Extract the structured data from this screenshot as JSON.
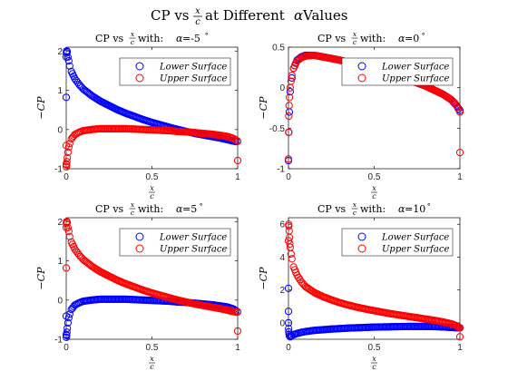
{
  "suptitle": {
    "pre": "CP vs ",
    "frac_num": "x",
    "frac_den": "c",
    "post": " at Different ",
    "alpha": "α",
    "tail": " Values"
  },
  "chart_data": [
    {
      "type": "scatter",
      "title": {
        "pre": "CP vs ",
        "frac_num": "x",
        "frac_den": "c",
        "mid": " with: ",
        "alpha": "α",
        "eq": " =-5",
        "deg": "°"
      },
      "xlabel": {
        "num": "x",
        "den": "c"
      },
      "ylabel": "−CP",
      "xlim": [
        0,
        1
      ],
      "ylim": [
        -1,
        2.1
      ],
      "xticks": [
        0,
        0.5,
        1
      ],
      "xtick_labels": [
        "0",
        "0.5",
        "1"
      ],
      "yticks": [
        -1,
        0,
        1,
        2
      ],
      "ytick_labels": [
        "-1",
        "0",
        "1",
        "2"
      ],
      "legend": [
        "Lower Surface",
        "Upper Surface"
      ],
      "legend_position": "top-right",
      "series": [
        {
          "name": "Lower Surface",
          "color": "#0000ff",
          "x": [
            0,
            0,
            0.001,
            0.002,
            0.004,
            0.006,
            0.01,
            0.015,
            0.02,
            0.03,
            0.05,
            0.075,
            0.1,
            0.15,
            0.2,
            0.25,
            0.3,
            0.35,
            0.4,
            0.45,
            0.5,
            0.55,
            0.6,
            0.65,
            0.7,
            0.75,
            0.8,
            0.85,
            0.9,
            0.93,
            0.95,
            0.97,
            0.98,
            0.99,
            1.0
          ],
          "y": [
            0.82,
            1.85,
            1.95,
            2.0,
            2.0,
            1.98,
            1.85,
            1.75,
            1.62,
            1.48,
            1.3,
            1.15,
            1.03,
            0.86,
            0.72,
            0.61,
            0.5,
            0.41,
            0.33,
            0.25,
            0.18,
            0.12,
            0.06,
            0.0,
            -0.05,
            -0.1,
            -0.14,
            -0.18,
            -0.22,
            -0.25,
            -0.27,
            -0.29,
            -0.3,
            -0.31,
            -0.3
          ]
        },
        {
          "name": "Upper Surface",
          "color": "#ff0000",
          "x": [
            0,
            0,
            0.001,
            0.002,
            0.004,
            0.006,
            0.01,
            0.015,
            0.02,
            0.03,
            0.05,
            0.075,
            0.1,
            0.15,
            0.2,
            0.25,
            0.3,
            0.35,
            0.4,
            0.45,
            0.5,
            0.55,
            0.6,
            0.65,
            0.7,
            0.75,
            0.8,
            0.85,
            0.9,
            0.93,
            0.95,
            0.97,
            0.98,
            0.99,
            1.0,
            1.0
          ],
          "y": [
            -0.41,
            -0.88,
            -0.95,
            -0.9,
            -0.82,
            -0.72,
            -0.58,
            -0.45,
            -0.36,
            -0.24,
            -0.13,
            -0.07,
            -0.03,
            0.0,
            0.02,
            0.02,
            0.02,
            0.02,
            0.01,
            0.0,
            -0.01,
            -0.02,
            -0.03,
            -0.05,
            -0.06,
            -0.08,
            -0.1,
            -0.12,
            -0.15,
            -0.17,
            -0.19,
            -0.22,
            -0.24,
            -0.27,
            -0.3,
            -0.79
          ]
        }
      ]
    },
    {
      "type": "scatter",
      "title": {
        "pre": "CP vs ",
        "frac_num": "x",
        "frac_den": "c",
        "mid": " with: ",
        "alpha": "α",
        "eq": " =0",
        "deg": "°"
      },
      "xlabel": {
        "num": "x",
        "den": "c"
      },
      "ylabel": "−CP",
      "xlim": [
        0,
        1
      ],
      "ylim": [
        -1,
        0.5
      ],
      "xticks": [
        0,
        0.5,
        1
      ],
      "xtick_labels": [
        "0",
        "0.5",
        "1"
      ],
      "yticks": [
        -1,
        -0.5,
        0,
        0.5
      ],
      "ytick_labels": [
        "-1",
        "-0.5",
        "0",
        "0.5"
      ],
      "legend": [
        "Lower Surface",
        "Upper Surface"
      ],
      "legend_position": "top-right",
      "series": [
        {
          "name": "Lower Surface",
          "color": "#0000ff",
          "x": [
            0,
            0.002,
            0.005,
            0.01,
            0.02,
            0.03,
            0.05,
            0.075,
            0.1,
            0.15,
            0.2,
            0.25,
            0.3,
            0.35,
            0.4,
            0.45,
            0.5,
            0.55,
            0.6,
            0.65,
            0.7,
            0.75,
            0.8,
            0.85,
            0.9,
            0.95,
            0.98,
            1.0
          ],
          "y": [
            -0.9,
            -0.55,
            -0.3,
            -0.05,
            0.12,
            0.24,
            0.34,
            0.38,
            0.4,
            0.4,
            0.38,
            0.36,
            0.34,
            0.31,
            0.29,
            0.26,
            0.23,
            0.2,
            0.17,
            0.14,
            0.1,
            0.06,
            0.02,
            -0.03,
            -0.08,
            -0.15,
            -0.22,
            -0.28
          ]
        },
        {
          "name": "Upper Surface",
          "color": "#ff0000",
          "x": [
            0,
            0.001,
            0.002,
            0.004,
            0.006,
            0.01,
            0.015,
            0.02,
            0.03,
            0.05,
            0.075,
            0.1,
            0.15,
            0.2,
            0.25,
            0.3,
            0.35,
            0.4,
            0.45,
            0.5,
            0.55,
            0.6,
            0.65,
            0.7,
            0.75,
            0.8,
            0.85,
            0.9,
            0.93,
            0.95,
            0.97,
            0.98,
            0.99,
            1.0,
            1.0
          ],
          "y": [
            -0.88,
            -0.55,
            -0.35,
            -0.22,
            -0.12,
            0.0,
            0.08,
            0.15,
            0.24,
            0.33,
            0.37,
            0.39,
            0.4,
            0.38,
            0.36,
            0.34,
            0.31,
            0.29,
            0.26,
            0.23,
            0.2,
            0.17,
            0.14,
            0.1,
            0.06,
            0.02,
            -0.03,
            -0.08,
            -0.12,
            -0.15,
            -0.19,
            -0.22,
            -0.26,
            -0.3,
            -0.8
          ]
        }
      ]
    },
    {
      "type": "scatter",
      "title": {
        "pre": "CP vs ",
        "frac_num": "x",
        "frac_den": "c",
        "mid": " with: ",
        "alpha": "α",
        "eq": " =5",
        "deg": "°"
      },
      "xlabel": {
        "num": "x",
        "den": "c"
      },
      "ylabel": "−CP",
      "xlim": [
        0,
        1
      ],
      "ylim": [
        -1,
        2.1
      ],
      "xticks": [
        0,
        0.5,
        1
      ],
      "xtick_labels": [
        "0",
        "0.5",
        "1"
      ],
      "yticks": [
        -1,
        0,
        1,
        2
      ],
      "ytick_labels": [
        "-1",
        "0",
        "1",
        "2"
      ],
      "legend": [
        "Lower Surface",
        "Upper Surface"
      ],
      "legend_position": "top-right",
      "series": [
        {
          "name": "Lower Surface",
          "color": "#0000ff",
          "x": [
            0,
            0,
            0.001,
            0.002,
            0.004,
            0.006,
            0.01,
            0.015,
            0.02,
            0.03,
            0.05,
            0.075,
            0.1,
            0.15,
            0.2,
            0.25,
            0.3,
            0.35,
            0.4,
            0.45,
            0.5,
            0.55,
            0.6,
            0.65,
            0.7,
            0.75,
            0.8,
            0.85,
            0.9,
            0.93,
            0.95,
            0.97,
            0.98,
            0.99,
            1.0
          ],
          "y": [
            -0.41,
            -0.88,
            -0.95,
            -0.9,
            -0.82,
            -0.72,
            -0.58,
            -0.45,
            -0.36,
            -0.24,
            -0.13,
            -0.07,
            -0.03,
            0.0,
            0.02,
            0.02,
            0.02,
            0.02,
            0.01,
            0.0,
            -0.01,
            -0.02,
            -0.03,
            -0.05,
            -0.06,
            -0.08,
            -0.1,
            -0.12,
            -0.15,
            -0.17,
            -0.19,
            -0.22,
            -0.24,
            -0.27,
            -0.3
          ]
        },
        {
          "name": "Upper Surface",
          "color": "#ff0000",
          "x": [
            0,
            0,
            0.001,
            0.002,
            0.004,
            0.006,
            0.01,
            0.015,
            0.02,
            0.03,
            0.05,
            0.075,
            0.1,
            0.15,
            0.2,
            0.25,
            0.3,
            0.35,
            0.4,
            0.45,
            0.5,
            0.55,
            0.6,
            0.65,
            0.7,
            0.75,
            0.8,
            0.85,
            0.9,
            0.93,
            0.95,
            0.97,
            0.98,
            0.99,
            1.0,
            1.0
          ],
          "y": [
            0.82,
            1.85,
            1.95,
            2.0,
            2.0,
            1.98,
            1.85,
            1.75,
            1.62,
            1.48,
            1.3,
            1.15,
            1.03,
            0.86,
            0.72,
            0.61,
            0.5,
            0.41,
            0.33,
            0.25,
            0.18,
            0.12,
            0.06,
            0.0,
            -0.05,
            -0.1,
            -0.14,
            -0.18,
            -0.22,
            -0.25,
            -0.27,
            -0.29,
            -0.3,
            -0.31,
            -0.3,
            -0.79
          ]
        }
      ]
    },
    {
      "type": "scatter",
      "title": {
        "pre": "CP vs ",
        "frac_num": "x",
        "frac_den": "c",
        "mid": " with: ",
        "alpha": "α",
        "eq": " =10",
        "deg": "°"
      },
      "xlabel": {
        "num": "x",
        "den": "c"
      },
      "ylabel": "−CP",
      "xlim": [
        0,
        1
      ],
      "ylim": [
        -1,
        6.4
      ],
      "xticks": [
        0,
        0.5,
        1
      ],
      "xtick_labels": [
        "0",
        "0.5",
        "1"
      ],
      "yticks": [
        0,
        2,
        4,
        6
      ],
      "ytick_labels": [
        "0",
        "2",
        "4",
        "6"
      ],
      "legend": [
        "Lower Surface",
        "Upper Surface"
      ],
      "legend_position": "top-right",
      "series": [
        {
          "name": "Lower Surface",
          "color": "#0000ff",
          "x": [
            0,
            0,
            0,
            0.001,
            0.002,
            0.004,
            0.006,
            0.01,
            0.015,
            0.02,
            0.03,
            0.05,
            0.075,
            0.1,
            0.15,
            0.2,
            0.25,
            0.3,
            0.35,
            0.4,
            0.45,
            0.5,
            0.55,
            0.6,
            0.65,
            0.7,
            0.75,
            0.8,
            0.85,
            0.9,
            0.95,
            0.98,
            1.0
          ],
          "y": [
            2.1,
            0.7,
            0.0,
            -0.35,
            -0.55,
            -0.7,
            -0.8,
            -0.85,
            -0.82,
            -0.78,
            -0.72,
            -0.65,
            -0.58,
            -0.53,
            -0.46,
            -0.42,
            -0.38,
            -0.35,
            -0.32,
            -0.3,
            -0.28,
            -0.26,
            -0.25,
            -0.24,
            -0.23,
            -0.22,
            -0.22,
            -0.22,
            -0.23,
            -0.25,
            -0.28,
            -0.3,
            -0.3
          ]
        },
        {
          "name": "Upper Surface",
          "color": "#ff0000",
          "x": [
            0,
            0.001,
            0.002,
            0.004,
            0.006,
            0.008,
            0.01,
            0.015,
            0.02,
            0.03,
            0.05,
            0.075,
            0.1,
            0.15,
            0.2,
            0.25,
            0.3,
            0.35,
            0.4,
            0.45,
            0.5,
            0.55,
            0.6,
            0.65,
            0.7,
            0.75,
            0.8,
            0.85,
            0.9,
            0.95,
            0.98,
            1.0,
            1.0
          ],
          "y": [
            5.0,
            6.0,
            5.9,
            5.6,
            5.2,
            4.8,
            4.6,
            4.2,
            3.9,
            3.4,
            2.9,
            2.5,
            2.2,
            1.85,
            1.6,
            1.4,
            1.22,
            1.08,
            0.95,
            0.84,
            0.74,
            0.64,
            0.55,
            0.47,
            0.39,
            0.31,
            0.23,
            0.15,
            0.06,
            -0.06,
            -0.18,
            -0.3,
            -0.85
          ]
        }
      ]
    }
  ]
}
